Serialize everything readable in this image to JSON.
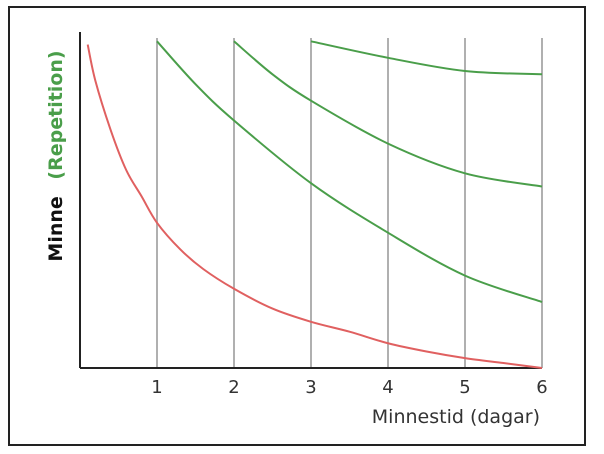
{
  "chart_data": {
    "type": "line",
    "xlabel": "Minnestid (dagar)",
    "ylabel_prefix": "Minne",
    "ylabel_note": "(Repetition)",
    "x_ticks": [
      1,
      2,
      3,
      4,
      5,
      6
    ],
    "xlim": [
      0,
      6
    ],
    "ylim": [
      0,
      1
    ],
    "grid_x": true,
    "colors": {
      "forgetting": "#e06060",
      "repetition": "#4a9e4a",
      "grid": "#b0b0b0",
      "axis": "#222222",
      "note": "#4a9e4a"
    },
    "series": [
      {
        "kind": "forgetting",
        "x": [
          0.1,
          0.2,
          0.4,
          0.6,
          0.8,
          1.0,
          1.3,
          1.6,
          2.0,
          2.5,
          3.0,
          3.5,
          4.0,
          4.5,
          5.0,
          5.5,
          6.0
        ],
        "y": [
          0.98,
          0.87,
          0.72,
          0.6,
          0.52,
          0.44,
          0.36,
          0.3,
          0.24,
          0.18,
          0.14,
          0.11,
          0.075,
          0.05,
          0.03,
          0.015,
          0.0
        ]
      },
      {
        "kind": "repetition",
        "x": [
          1.0,
          1.5,
          2.0,
          3.0,
          4.0,
          5.0,
          6.0
        ],
        "y": [
          0.99,
          0.86,
          0.75,
          0.56,
          0.41,
          0.28,
          0.2
        ]
      },
      {
        "kind": "repetition",
        "x": [
          2.0,
          2.5,
          3.0,
          4.0,
          5.0,
          6.0
        ],
        "y": [
          0.99,
          0.89,
          0.81,
          0.68,
          0.59,
          0.55
        ]
      },
      {
        "kind": "repetition",
        "x": [
          3.0,
          4.0,
          5.0,
          6.0
        ],
        "y": [
          0.99,
          0.94,
          0.9,
          0.89
        ]
      }
    ]
  }
}
